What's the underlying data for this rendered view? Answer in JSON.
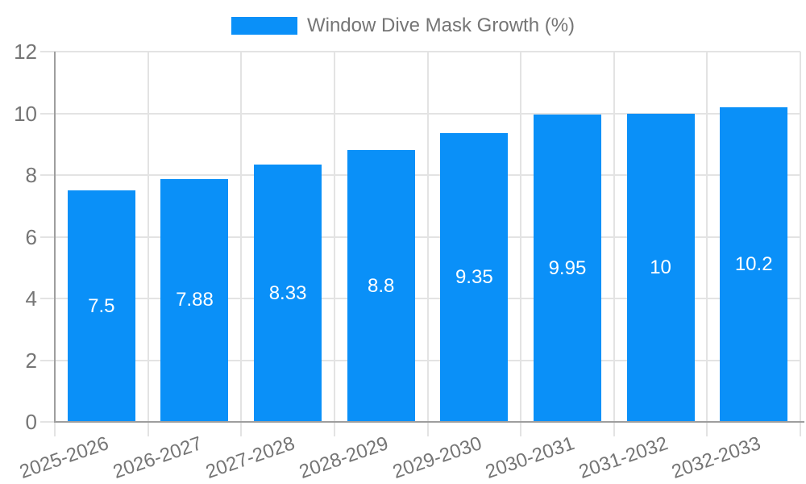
{
  "legend": {
    "label": "Window Dive Mask Growth (%)"
  },
  "chart_data": {
    "type": "bar",
    "title": "",
    "xlabel": "",
    "ylabel": "",
    "categories": [
      "2025-2026",
      "2026-2027",
      "2027-2028",
      "2028-2029",
      "2029-2030",
      "2030-2031",
      "2031-2032",
      "2032-2033"
    ],
    "series": [
      {
        "name": "Window Dive Mask Growth (%)",
        "values": [
          7.5,
          7.88,
          8.33,
          8.8,
          9.35,
          9.95,
          10,
          10.2
        ],
        "color": "#0a90f8"
      }
    ],
    "bar_value_labels": [
      "7.5",
      "7.88",
      "8.33",
      "8.8",
      "9.35",
      "9.95",
      "10",
      "10.2"
    ],
    "ylim": [
      0,
      12
    ],
    "yticks": [
      0,
      2,
      4,
      6,
      8,
      10,
      12
    ],
    "ytick_labels": [
      "0",
      "2",
      "4",
      "6",
      "8",
      "10",
      "12"
    ],
    "grid": true,
    "legend_position": "top",
    "x_tick_rotation_deg": -19,
    "value_label_color": "#ffffff",
    "tick_label_color": "#757575",
    "axis_color": "#9e9e9e",
    "grid_color": "#e3e3e3",
    "background": "#ffffff"
  }
}
